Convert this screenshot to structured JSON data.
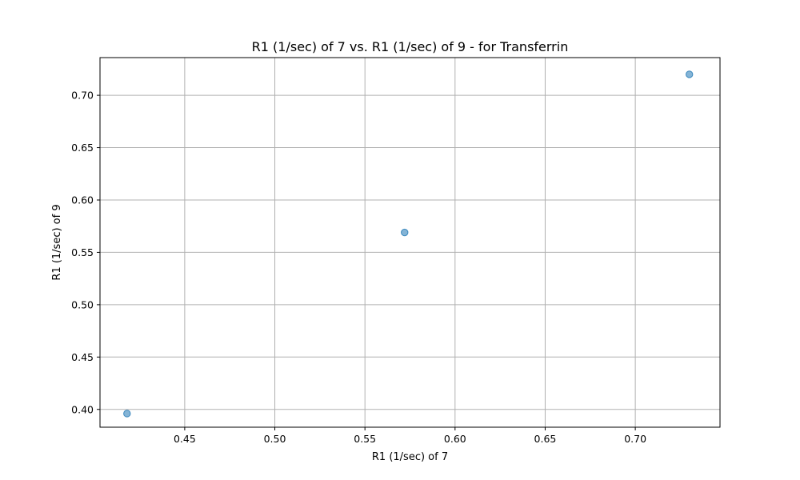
{
  "chart_data": {
    "type": "scatter",
    "title": "R1 (1/sec) of 7 vs. R1 (1/sec) of 9 - for Transferrin",
    "xlabel": "R1 (1/sec) of 7",
    "ylabel": "R1 (1/sec) of 9",
    "xlim": [
      0.403,
      0.747
    ],
    "ylim": [
      0.383,
      0.736
    ],
    "xticks": [
      0.45,
      0.5,
      0.55,
      0.6,
      0.65,
      0.7
    ],
    "xtick_labels": [
      "0.45",
      "0.50",
      "0.55",
      "0.60",
      "0.65",
      "0.70"
    ],
    "yticks": [
      0.4,
      0.45,
      0.5,
      0.55,
      0.6,
      0.65,
      0.7
    ],
    "ytick_labels": [
      "0.40",
      "0.45",
      "0.50",
      "0.55",
      "0.60",
      "0.65",
      "0.70"
    ],
    "grid": true,
    "marker_color": "#1f77b4",
    "marker_alpha": 0.55,
    "points": [
      {
        "x": 0.418,
        "y": 0.396
      },
      {
        "x": 0.572,
        "y": 0.569
      },
      {
        "x": 0.73,
        "y": 0.72
      }
    ]
  }
}
